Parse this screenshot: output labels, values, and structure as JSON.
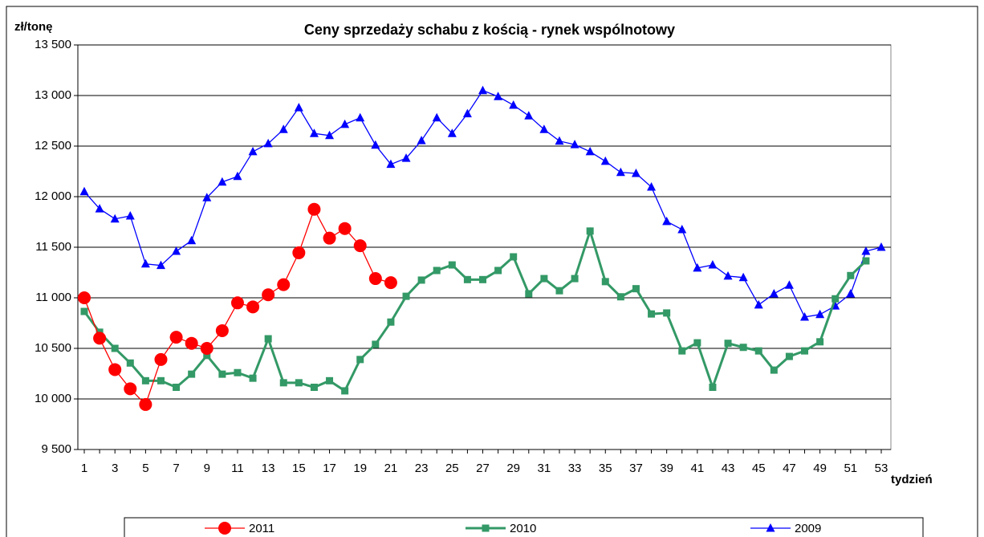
{
  "chart_data": {
    "type": "line",
    "title": "Ceny sprzedaży schabu z kością -  rynek wspólnotowy",
    "y_label": "zł/tonę",
    "x_label": "tydzień",
    "categories": [
      1,
      null,
      3,
      null,
      5,
      null,
      7,
      null,
      9,
      null,
      11,
      null,
      13,
      null,
      15,
      null,
      17,
      null,
      19,
      null,
      21,
      null,
      23,
      null,
      25,
      null,
      27,
      null,
      29,
      null,
      31,
      null,
      33,
      null,
      35,
      null,
      37,
      null,
      39,
      null,
      41,
      null,
      43,
      null,
      45,
      null,
      47,
      null,
      49,
      null,
      51,
      null,
      53
    ],
    "series": [
      {
        "name": "2011",
        "color": "#ff0000",
        "marker": "circle",
        "values": [
          11000,
          10600,
          10290,
          10100,
          9945,
          10390,
          10610,
          10550,
          10500,
          10675,
          10950,
          10910,
          11030,
          11130,
          11445,
          11875,
          11590,
          11685,
          11515,
          11190,
          11150,
          null,
          null,
          null,
          null,
          null,
          null,
          null,
          null,
          null,
          null,
          null,
          null,
          null,
          null,
          null,
          null,
          null,
          null,
          null,
          null,
          null,
          null,
          null,
          null,
          null,
          null,
          null,
          null,
          null,
          null,
          null,
          null
        ]
      },
      {
        "name": "2010",
        "color": "#339966",
        "marker": "square",
        "values": [
          10865,
          10660,
          10500,
          10355,
          10180,
          10180,
          10115,
          10245,
          10430,
          10245,
          10260,
          10205,
          10595,
          10160,
          10160,
          10115,
          10180,
          10080,
          10390,
          10540,
          10760,
          11015,
          11175,
          11270,
          11325,
          11180,
          11180,
          11270,
          11405,
          11040,
          11190,
          11070,
          11190,
          11660,
          11160,
          11010,
          11090,
          10840,
          10850,
          10475,
          10555,
          10115,
          10550,
          10510,
          10475,
          10285,
          10420,
          10475,
          10565,
          10990,
          11220,
          11365,
          null
        ]
      },
      {
        "name": "2009",
        "color": "#0000ff",
        "marker": "triangle",
        "values": [
          12050,
          11880,
          11780,
          11810,
          11335,
          11320,
          11460,
          11565,
          11990,
          12145,
          12200,
          12445,
          12525,
          12665,
          12880,
          12625,
          12605,
          12715,
          12780,
          12510,
          12320,
          12380,
          12555,
          12780,
          12625,
          12820,
          13050,
          12990,
          12905,
          12800,
          12665,
          12550,
          12515,
          12445,
          12350,
          12240,
          12230,
          12095,
          11755,
          11675,
          11295,
          11325,
          11215,
          11200,
          10930,
          11040,
          11125,
          10810,
          10835,
          10920,
          11040,
          11460,
          11500
        ]
      }
    ],
    "ylim": [
      9500,
      13500
    ],
    "yticks": [
      {
        "value": 9500,
        "label": "9 500"
      },
      {
        "value": 10000,
        "label": "10 000"
      },
      {
        "value": 10500,
        "label": "10 500"
      },
      {
        "value": 11000,
        "label": "11 000"
      },
      {
        "value": 11500,
        "label": "11 500"
      },
      {
        "value": 12000,
        "label": "12 000"
      },
      {
        "value": 12500,
        "label": "12 500"
      },
      {
        "value": 13000,
        "label": "13 000"
      },
      {
        "value": 13500,
        "label": "13 500"
      }
    ],
    "grid": true,
    "legend": "bottom"
  }
}
